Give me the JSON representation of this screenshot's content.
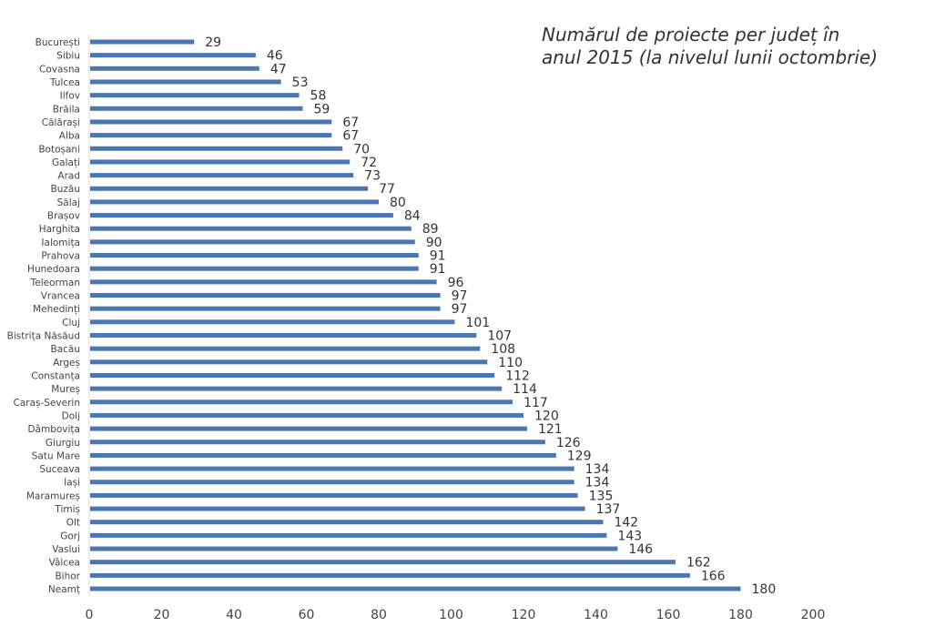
{
  "chart_data": {
    "type": "bar",
    "orientation": "horizontal",
    "title": "Numărul de proiecte per județ în anul 2015 (la nivelul lunii octombrie)",
    "xlabel": "",
    "ylabel": "",
    "xlim": [
      0,
      200
    ],
    "xticks": [
      0,
      20,
      40,
      60,
      80,
      100,
      120,
      140,
      160,
      180,
      200
    ],
    "grid": false,
    "legend": "none",
    "bar_color": "#4a77b4",
    "categories": [
      "București",
      "Sibiu",
      "Covasna",
      "Tulcea",
      "Ilfov",
      "Brăila",
      "Călărași",
      "Alba",
      "Botoșani",
      "Galați",
      "Arad",
      "Buzău",
      "Sălaj",
      "Brașov",
      "Harghita",
      "Ialomița",
      "Prahova",
      "Hunedoara",
      "Teleorman",
      "Vrancea",
      "Mehedinți",
      "Cluj",
      "Bistrița Năsăud",
      "Bacău",
      "Argeș",
      "Constanța",
      "Mureș",
      "Caraș-Severin",
      "Dolj",
      "Dâmbovița",
      "Giurgiu",
      "Satu Mare",
      "Suceava",
      "Iași",
      "Maramureș",
      "Timiș",
      "Olt",
      "Gorj",
      "Vaslui",
      "Vâlcea",
      "Bihor",
      "Neamț"
    ],
    "values": [
      29,
      46,
      47,
      53,
      58,
      59,
      67,
      67,
      70,
      72,
      73,
      77,
      80,
      84,
      89,
      90,
      91,
      91,
      96,
      97,
      97,
      101,
      107,
      108,
      110,
      112,
      114,
      117,
      120,
      121,
      126,
      129,
      134,
      134,
      135,
      137,
      142,
      143,
      146,
      162,
      166,
      180
    ]
  }
}
